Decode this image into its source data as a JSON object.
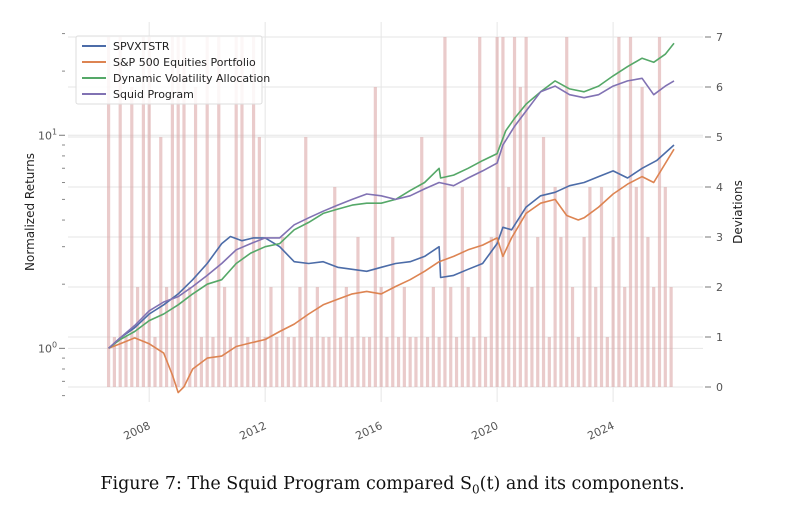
{
  "caption": {
    "prefix": "Figure 7: The Squid Program compared S",
    "sub": "0",
    "suffix": "(t) and its components."
  },
  "colors": {
    "SPVXTSTR": "#4c6ca8",
    "S&P 500 Equities Portfolio": "#dd8452",
    "Dynamic Volatility Allocation": "#55a868",
    "Squid Program": "#8172b3",
    "deviations": "#d9a0a0",
    "grid": "#e6e6e6"
  },
  "chart_data": {
    "type": "line",
    "title": "",
    "xlabel": "",
    "ylabel": "Normalized Returns",
    "y2label": "Deviations",
    "yscale": "log",
    "ylim": [
      0.56,
      34
    ],
    "y2lim": [
      -0.3,
      7.3
    ],
    "xlim": [
      2005.2,
      2027.1
    ],
    "xticks": [
      "2008",
      "2012",
      "2016",
      "2020",
      "2024"
    ],
    "yticks": [
      {
        "base": "10",
        "exp": "0",
        "value": 1
      },
      {
        "base": "10",
        "exp": "1",
        "value": 10
      }
    ],
    "y2ticks": [
      "0",
      "1",
      "2",
      "3",
      "4",
      "5",
      "6",
      "7"
    ],
    "grid": true,
    "legend_position": "top-left",
    "series": [
      {
        "name": "SPVXTSTR",
        "axis": "left",
        "x": [
          2006.6,
          2007.0,
          2007.5,
          2008.0,
          2008.5,
          2009.0,
          2009.5,
          2010.0,
          2010.5,
          2010.8,
          2011.2,
          2011.6,
          2012.0,
          2012.5,
          2013.0,
          2013.5,
          2014.0,
          2014.5,
          2015.0,
          2015.5,
          2016.0,
          2016.5,
          2017.0,
          2017.5,
          2018.0,
          2018.05,
          2018.5,
          2019.0,
          2019.5,
          2020.0,
          2020.2,
          2020.5,
          2021.0,
          2021.5,
          2022.0,
          2022.5,
          2023.0,
          2023.5,
          2024.0,
          2024.5,
          2025.0,
          2025.5,
          2026.1
        ],
        "y": [
          1.0,
          1.12,
          1.25,
          1.45,
          1.6,
          1.8,
          2.1,
          2.5,
          3.1,
          3.35,
          3.2,
          3.3,
          3.3,
          3.0,
          2.55,
          2.5,
          2.55,
          2.4,
          2.35,
          2.3,
          2.4,
          2.5,
          2.55,
          2.7,
          3.0,
          2.15,
          2.2,
          2.35,
          2.5,
          3.1,
          3.7,
          3.6,
          4.6,
          5.2,
          5.4,
          5.8,
          6.0,
          6.4,
          6.8,
          6.3,
          7.0,
          7.6,
          9.0
        ]
      },
      {
        "name": "S&P 500 Equities Portfolio",
        "axis": "left",
        "x": [
          2006.6,
          2007.0,
          2007.5,
          2008.0,
          2008.5,
          2008.8,
          2009.0,
          2009.2,
          2009.5,
          2010.0,
          2010.5,
          2011.0,
          2011.5,
          2012.0,
          2012.5,
          2013.0,
          2013.5,
          2014.0,
          2014.5,
          2015.0,
          2015.5,
          2016.0,
          2016.5,
          2017.0,
          2017.5,
          2018.0,
          2018.5,
          2019.0,
          2019.5,
          2020.0,
          2020.2,
          2020.5,
          2021.0,
          2021.5,
          2022.0,
          2022.4,
          2022.8,
          2023.0,
          2023.5,
          2024.0,
          2024.5,
          2025.0,
          2025.4,
          2026.1
        ],
        "y": [
          1.0,
          1.05,
          1.12,
          1.05,
          0.95,
          0.75,
          0.62,
          0.66,
          0.8,
          0.9,
          0.92,
          1.02,
          1.06,
          1.1,
          1.2,
          1.3,
          1.45,
          1.6,
          1.7,
          1.8,
          1.85,
          1.8,
          1.95,
          2.1,
          2.3,
          2.55,
          2.7,
          2.9,
          3.05,
          3.3,
          2.7,
          3.3,
          4.3,
          4.8,
          5.0,
          4.2,
          4.0,
          4.1,
          4.6,
          5.3,
          5.9,
          6.4,
          6.0,
          8.6
        ]
      },
      {
        "name": "Dynamic Volatility Allocation",
        "axis": "left",
        "x": [
          2006.6,
          2007.0,
          2007.5,
          2008.0,
          2008.5,
          2009.0,
          2009.5,
          2010.0,
          2010.5,
          2011.0,
          2011.5,
          2012.0,
          2012.5,
          2013.0,
          2013.5,
          2014.0,
          2014.5,
          2015.0,
          2015.5,
          2016.0,
          2016.5,
          2017.0,
          2017.5,
          2018.0,
          2018.05,
          2018.5,
          2019.0,
          2019.5,
          2020.0,
          2020.3,
          2020.6,
          2021.0,
          2021.5,
          2022.0,
          2022.5,
          2023.0,
          2023.5,
          2024.0,
          2024.5,
          2025.0,
          2025.4,
          2025.8,
          2026.1
        ],
        "y": [
          1.0,
          1.1,
          1.2,
          1.35,
          1.45,
          1.6,
          1.8,
          2.0,
          2.1,
          2.5,
          2.8,
          3.0,
          3.1,
          3.6,
          3.9,
          4.3,
          4.5,
          4.7,
          4.8,
          4.8,
          5.0,
          5.5,
          6.0,
          7.0,
          6.3,
          6.5,
          7.0,
          7.6,
          8.2,
          10.5,
          12.0,
          14.0,
          16.0,
          18.0,
          16.5,
          16.0,
          17.0,
          19.0,
          21.0,
          23.0,
          22.0,
          24.0,
          27.0
        ]
      },
      {
        "name": "Squid Program",
        "axis": "left",
        "x": [
          2006.6,
          2007.0,
          2007.5,
          2008.0,
          2008.5,
          2009.0,
          2009.5,
          2010.0,
          2010.5,
          2011.0,
          2011.5,
          2012.0,
          2012.5,
          2013.0,
          2013.5,
          2014.0,
          2014.5,
          2015.0,
          2015.5,
          2016.0,
          2016.5,
          2017.0,
          2017.5,
          2018.0,
          2018.5,
          2019.0,
          2019.5,
          2020.0,
          2020.2,
          2020.6,
          2021.0,
          2021.5,
          2022.0,
          2022.5,
          2023.0,
          2023.5,
          2024.0,
          2024.5,
          2025.0,
          2025.4,
          2025.8,
          2026.1
        ],
        "y": [
          1.0,
          1.12,
          1.28,
          1.5,
          1.65,
          1.75,
          1.95,
          2.2,
          2.5,
          2.9,
          3.1,
          3.3,
          3.3,
          3.8,
          4.1,
          4.4,
          4.7,
          5.0,
          5.3,
          5.2,
          5.0,
          5.2,
          5.6,
          6.0,
          5.8,
          6.3,
          6.8,
          7.4,
          9.0,
          11.0,
          13.0,
          16.0,
          17.0,
          15.5,
          15.0,
          15.5,
          17.0,
          18.0,
          18.5,
          15.5,
          17.0,
          18.0
        ]
      },
      {
        "name": "Deviations",
        "axis": "right",
        "style": "shaded-bars",
        "x": [
          2006.6,
          2006.8,
          2007.0,
          2007.2,
          2007.4,
          2007.6,
          2007.8,
          2008.0,
          2008.2,
          2008.4,
          2008.6,
          2008.8,
          2009.0,
          2009.2,
          2009.4,
          2009.6,
          2009.8,
          2010.0,
          2010.2,
          2010.4,
          2010.6,
          2010.8,
          2011.0,
          2011.2,
          2011.4,
          2011.6,
          2011.8,
          2012.0,
          2012.2,
          2012.4,
          2012.6,
          2012.8,
          2013.0,
          2013.2,
          2013.4,
          2013.6,
          2013.8,
          2014.0,
          2014.2,
          2014.4,
          2014.6,
          2014.8,
          2015.0,
          2015.2,
          2015.4,
          2015.6,
          2015.8,
          2016.0,
          2016.2,
          2016.4,
          2016.6,
          2016.8,
          2017.0,
          2017.2,
          2017.4,
          2017.6,
          2017.8,
          2018.0,
          2018.2,
          2018.4,
          2018.6,
          2018.8,
          2019.0,
          2019.2,
          2019.4,
          2019.6,
          2019.8,
          2020.0,
          2020.2,
          2020.4,
          2020.6,
          2020.8,
          2021.0,
          2021.2,
          2021.4,
          2021.6,
          2021.8,
          2022.0,
          2022.2,
          2022.4,
          2022.6,
          2022.8,
          2023.0,
          2023.2,
          2023.4,
          2023.6,
          2023.8,
          2024.0,
          2024.2,
          2024.4,
          2024.6,
          2024.8,
          2025.0,
          2025.2,
          2025.4,
          2025.6,
          2025.8,
          2026.0
        ],
        "y": [
          7,
          1,
          7,
          1,
          6,
          2,
          7,
          7,
          1,
          5,
          2,
          7,
          7,
          7,
          2,
          6,
          1,
          7,
          1,
          7,
          2,
          1,
          7,
          7,
          1,
          7,
          5,
          1,
          2,
          1,
          3,
          1,
          1,
          2,
          5,
          1,
          2,
          1,
          1,
          4,
          1,
          2,
          1,
          3,
          1,
          1,
          6,
          2,
          1,
          3,
          1,
          2,
          1,
          1,
          5,
          1,
          2,
          1,
          7,
          2,
          1,
          4,
          2,
          1,
          7,
          1,
          3,
          7,
          7,
          4,
          7,
          6,
          7,
          2,
          3,
          5,
          1,
          4,
          3,
          7,
          2,
          1,
          3,
          4,
          2,
          4,
          1,
          3,
          7,
          2,
          7,
          4,
          6,
          3,
          2,
          7,
          4,
          2
        ]
      }
    ]
  }
}
